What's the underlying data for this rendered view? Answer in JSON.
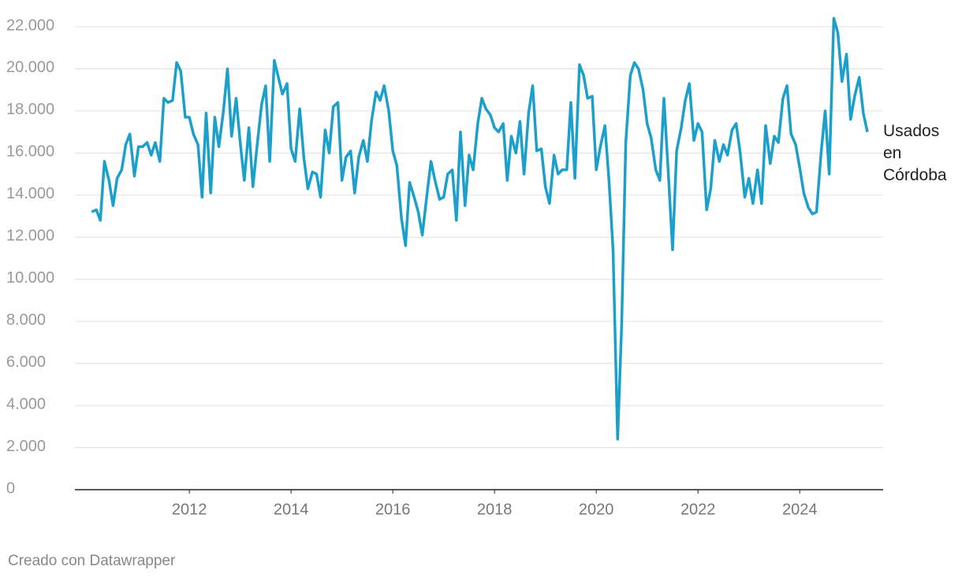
{
  "chart_data": {
    "type": "line",
    "x": [
      2010.08,
      2010.17,
      2010.25,
      2010.33,
      2010.42,
      2010.5,
      2010.58,
      2010.67,
      2010.75,
      2010.83,
      2010.92,
      2011.0,
      2011.08,
      2011.17,
      2011.25,
      2011.33,
      2011.42,
      2011.5,
      2011.58,
      2011.67,
      2011.75,
      2011.83,
      2011.92,
      2012.0,
      2012.08,
      2012.17,
      2012.25,
      2012.33,
      2012.42,
      2012.5,
      2012.58,
      2012.67,
      2012.75,
      2012.83,
      2012.92,
      2013.0,
      2013.08,
      2013.17,
      2013.25,
      2013.33,
      2013.42,
      2013.5,
      2013.58,
      2013.67,
      2013.75,
      2013.83,
      2013.92,
      2014.0,
      2014.08,
      2014.17,
      2014.25,
      2014.33,
      2014.42,
      2014.5,
      2014.58,
      2014.67,
      2014.75,
      2014.83,
      2014.92,
      2015.0,
      2015.08,
      2015.17,
      2015.25,
      2015.33,
      2015.42,
      2015.5,
      2015.58,
      2015.67,
      2015.75,
      2015.83,
      2015.92,
      2016.0,
      2016.08,
      2016.17,
      2016.25,
      2016.33,
      2016.42,
      2016.5,
      2016.58,
      2016.67,
      2016.75,
      2016.83,
      2016.92,
      2017.0,
      2017.08,
      2017.17,
      2017.25,
      2017.33,
      2017.42,
      2017.5,
      2017.58,
      2017.67,
      2017.75,
      2017.83,
      2017.92,
      2018.0,
      2018.08,
      2018.17,
      2018.25,
      2018.33,
      2018.42,
      2018.5,
      2018.58,
      2018.67,
      2018.75,
      2018.83,
      2018.92,
      2019.0,
      2019.08,
      2019.17,
      2019.25,
      2019.33,
      2019.42,
      2019.5,
      2019.58,
      2019.67,
      2019.75,
      2019.83,
      2019.92,
      2020.0,
      2020.08,
      2020.17,
      2020.25,
      2020.33,
      2020.42,
      2020.5,
      2020.58,
      2020.67,
      2020.75,
      2020.83,
      2020.92,
      2021.0,
      2021.08,
      2021.17,
      2021.25,
      2021.33,
      2021.42,
      2021.5,
      2021.58,
      2021.67,
      2021.75,
      2021.83,
      2021.92,
      2022.0,
      2022.08,
      2022.17,
      2022.25,
      2022.33,
      2022.42,
      2022.5,
      2022.58,
      2022.67,
      2022.75,
      2022.83,
      2022.92,
      2023.0,
      2023.08,
      2023.17,
      2023.25,
      2023.33,
      2023.42,
      2023.5,
      2023.58,
      2023.67,
      2023.75,
      2023.83,
      2023.92,
      2024.0,
      2024.08,
      2024.17,
      2024.25,
      2024.33,
      2024.42,
      2024.5,
      2024.58,
      2024.67,
      2024.75,
      2024.83,
      2024.92,
      2025.0,
      2025.08,
      2025.17,
      2025.25,
      2025.33
    ],
    "series": [
      {
        "name": "Usados en Córdoba",
        "color": "#1b9fcb",
        "values": [
          13200,
          13300,
          12800,
          15600,
          14700,
          13500,
          14800,
          15200,
          16400,
          16900,
          14900,
          16300,
          16300,
          16500,
          15900,
          16500,
          15600,
          18600,
          18400,
          18500,
          20300,
          19900,
          17700,
          17700,
          16900,
          16400,
          13900,
          17900,
          14100,
          17700,
          16300,
          18000,
          20000,
          16800,
          18600,
          16500,
          14700,
          17200,
          14400,
          16300,
          18300,
          19200,
          15600,
          20400,
          19600,
          18800,
          19300,
          16200,
          15600,
          18100,
          15800,
          14300,
          15100,
          15000,
          13900,
          17100,
          16000,
          18200,
          18400,
          14700,
          15800,
          16100,
          14100,
          15800,
          16600,
          15600,
          17500,
          18900,
          18500,
          19200,
          18000,
          16100,
          15400,
          12900,
          11600,
          14600,
          13900,
          13200,
          12100,
          14000,
          15600,
          14700,
          13800,
          13900,
          15000,
          15200,
          12800,
          17000,
          13500,
          15900,
          15200,
          17400,
          18600,
          18100,
          17800,
          17200,
          17000,
          17400,
          14700,
          16800,
          16000,
          17500,
          15000,
          17900,
          19200,
          16100,
          16200,
          14400,
          13600,
          15900,
          15000,
          15200,
          15200,
          18400,
          14800,
          20200,
          19700,
          18600,
          18700,
          15200,
          16300,
          17300,
          14700,
          11400,
          2400,
          7900,
          16500,
          19700,
          20300,
          20000,
          19000,
          17400,
          16700,
          15200,
          14700,
          18600,
          14900,
          11400,
          16100,
          17200,
          18500,
          19300,
          16600,
          17400,
          17000,
          13300,
          14300,
          16600,
          15600,
          16400,
          15900,
          17100,
          17400,
          16000,
          13900,
          14800,
          13600,
          15200,
          13600,
          17300,
          15500,
          16800,
          16500,
          18600,
          19200,
          16900,
          16400,
          15300,
          14100,
          13400,
          13100,
          13200,
          16000,
          18000,
          15000,
          22400,
          21700,
          19400,
          20700,
          17600,
          18700,
          19600,
          17900,
          17000
        ]
      }
    ],
    "xlim": [
      2009.75,
      2025.64
    ],
    "xticks": [
      2012,
      2014,
      2016,
      2018,
      2020,
      2022,
      2024
    ],
    "ylim": [
      0,
      22000
    ],
    "yticks": [
      0,
      {
        "value": 2000,
        "label": "2.000"
      },
      {
        "value": 4000,
        "label": "4.000"
      },
      {
        "value": 6000,
        "label": "6.000"
      },
      {
        "value": 8000,
        "label": "8.000"
      },
      {
        "value": 10000,
        "label": "10.000"
      },
      {
        "value": 12000,
        "label": "12.000"
      },
      {
        "value": 14000,
        "label": "14.000"
      },
      {
        "value": 16000,
        "label": "16.000"
      },
      {
        "value": 18000,
        "label": "18.000"
      },
      {
        "value": 20000,
        "label": "20.000"
      },
      {
        "value": 22000,
        "label": "22.000"
      }
    ],
    "grid": true,
    "footer": "Creado con Datawrapper"
  }
}
